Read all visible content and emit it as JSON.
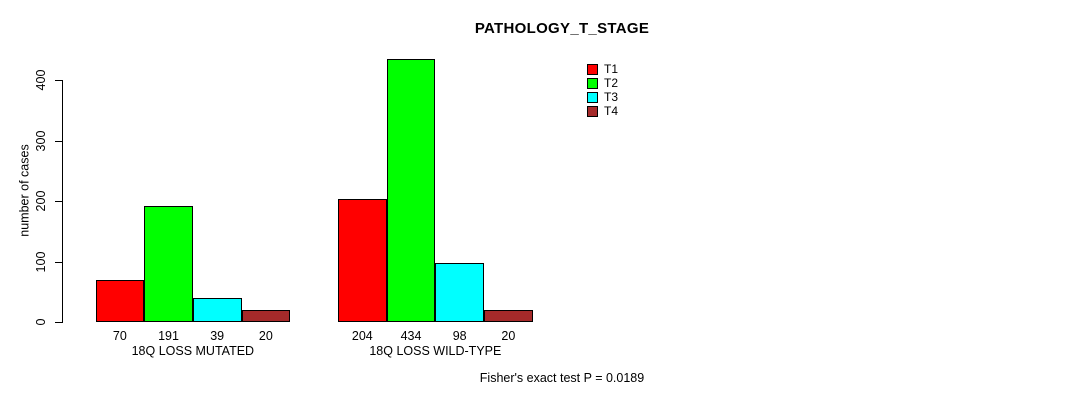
{
  "chart_data": {
    "type": "bar",
    "title": "PATHOLOGY_T_STAGE",
    "ylabel": "number of cases",
    "xlabel": "",
    "categories": [
      "18Q LOSS MUTATED",
      "18Q LOSS WILD-TYPE"
    ],
    "series": [
      {
        "name": "T1",
        "color": "#FF0000",
        "values": [
          70,
          204
        ]
      },
      {
        "name": "T2",
        "color": "#00FF00",
        "values": [
          191,
          434
        ]
      },
      {
        "name": "T3",
        "color": "#00FFFF",
        "values": [
          39,
          98
        ]
      },
      {
        "name": "T4",
        "color": "#A52A2A",
        "values": [
          20,
          20
        ]
      }
    ],
    "yticks": [
      0,
      100,
      200,
      300,
      400
    ],
    "ylim": [
      0,
      440
    ],
    "grid": false,
    "legend_position": "upper-right-inside",
    "bar_value_labels_shown": true,
    "annotation": "Fisher's exact test P = 0.0189",
    "background_color": "#FFFFFF",
    "axis_color": "#000000"
  }
}
